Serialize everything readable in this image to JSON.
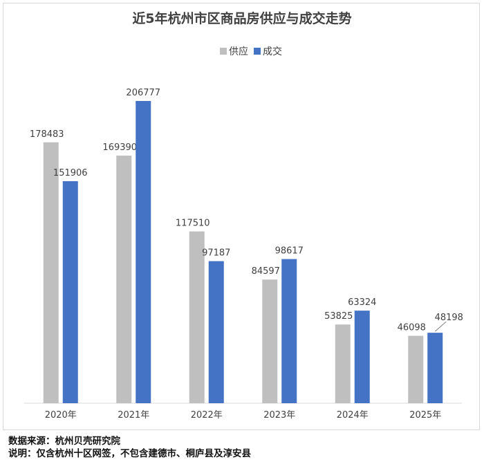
{
  "chart_data": {
    "type": "bar",
    "title": "近5年杭州市区商品房供应与成交走势",
    "categories": [
      "2020年",
      "2021年",
      "2022年",
      "2023年",
      "2024年",
      "2025年"
    ],
    "series": [
      {
        "name": "供应",
        "color": "#bfbfbf",
        "values": [
          178483,
          169390,
          117510,
          84597,
          53825,
          46098
        ]
      },
      {
        "name": "成交",
        "color": "#4472c4",
        "values": [
          151906,
          206777,
          97187,
          98617,
          63324,
          48198
        ]
      }
    ],
    "ylim": [
      0,
      220000
    ],
    "grid": false,
    "legend_position": "top"
  },
  "footer": {
    "source": "数据来源：杭州贝壳研究院",
    "note": "说明：仅含杭州十区网签，不包含建德市、桐庐县及淳安县"
  }
}
